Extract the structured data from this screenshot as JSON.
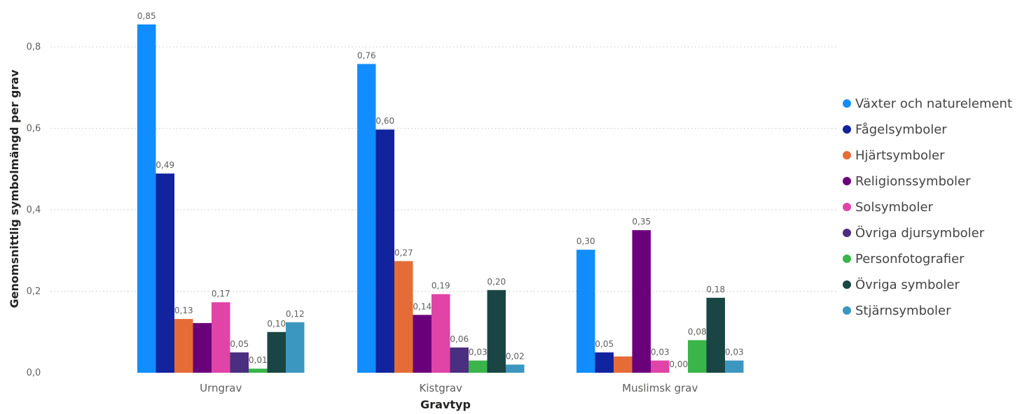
{
  "chart_data": {
    "type": "bar",
    "title": "",
    "xlabel": "Gravtyp",
    "ylabel": "Genomsnittlig symbolmängd per grav",
    "ylim": [
      0,
      0.88
    ],
    "yticks": [
      0,
      0.2,
      0.4,
      0.6,
      0.8
    ],
    "ytick_labels": [
      "0,0",
      "0,2",
      "0,4",
      "0,6",
      "0,8"
    ],
    "grid": true,
    "legend_position": "right",
    "categories": [
      "Urngrav",
      "Kistgrav",
      "Muslimsk grav"
    ],
    "series": [
      {
        "name": "Växter och naturelement",
        "color": "#118DFF",
        "values": [
          0.855,
          0.758,
          0.302
        ],
        "labels": [
          "0,85",
          "0,76",
          "0,30"
        ]
      },
      {
        "name": "Fågelsymboler",
        "color": "#12239E",
        "values": [
          0.489,
          0.597,
          0.05
        ],
        "labels": [
          "0,49",
          "0,60",
          "0,05"
        ]
      },
      {
        "name": "Hjärtsymboler",
        "color": "#E66C37",
        "values": [
          0.132,
          0.274,
          0.04
        ],
        "labels": [
          "0,13",
          "0,27",
          ""
        ]
      },
      {
        "name": "Religionssymboler",
        "color": "#6B007B",
        "values": [
          0.122,
          0.142,
          0.35
        ],
        "labels": [
          "",
          "0,14",
          "0,35"
        ]
      },
      {
        "name": "Solsymboler",
        "color": "#E044A7",
        "values": [
          0.173,
          0.193,
          0.03
        ],
        "labels": [
          "0,17",
          "0,19",
          "0,03"
        ]
      },
      {
        "name": "Övriga djursymboler",
        "color": "#4A2E7F",
        "values": [
          0.05,
          0.062,
          0.0
        ],
        "labels": [
          "0,05",
          "0,06",
          "0,00"
        ]
      },
      {
        "name": "Personfotografier",
        "color": "#3AB54A",
        "values": [
          0.01,
          0.03,
          0.08
        ],
        "labels": [
          "0,01",
          "0,03",
          "0,08"
        ]
      },
      {
        "name": "Övriga symboler",
        "color": "#1A4545",
        "values": [
          0.1,
          0.203,
          0.184
        ],
        "labels": [
          "0,10",
          "0,20",
          "0,18"
        ]
      },
      {
        "name": "Stjärnsymboler",
        "color": "#3C97C0",
        "values": [
          0.124,
          0.02,
          0.03
        ],
        "labels": [
          "0,12",
          "0,02",
          "0,03"
        ]
      }
    ]
  }
}
